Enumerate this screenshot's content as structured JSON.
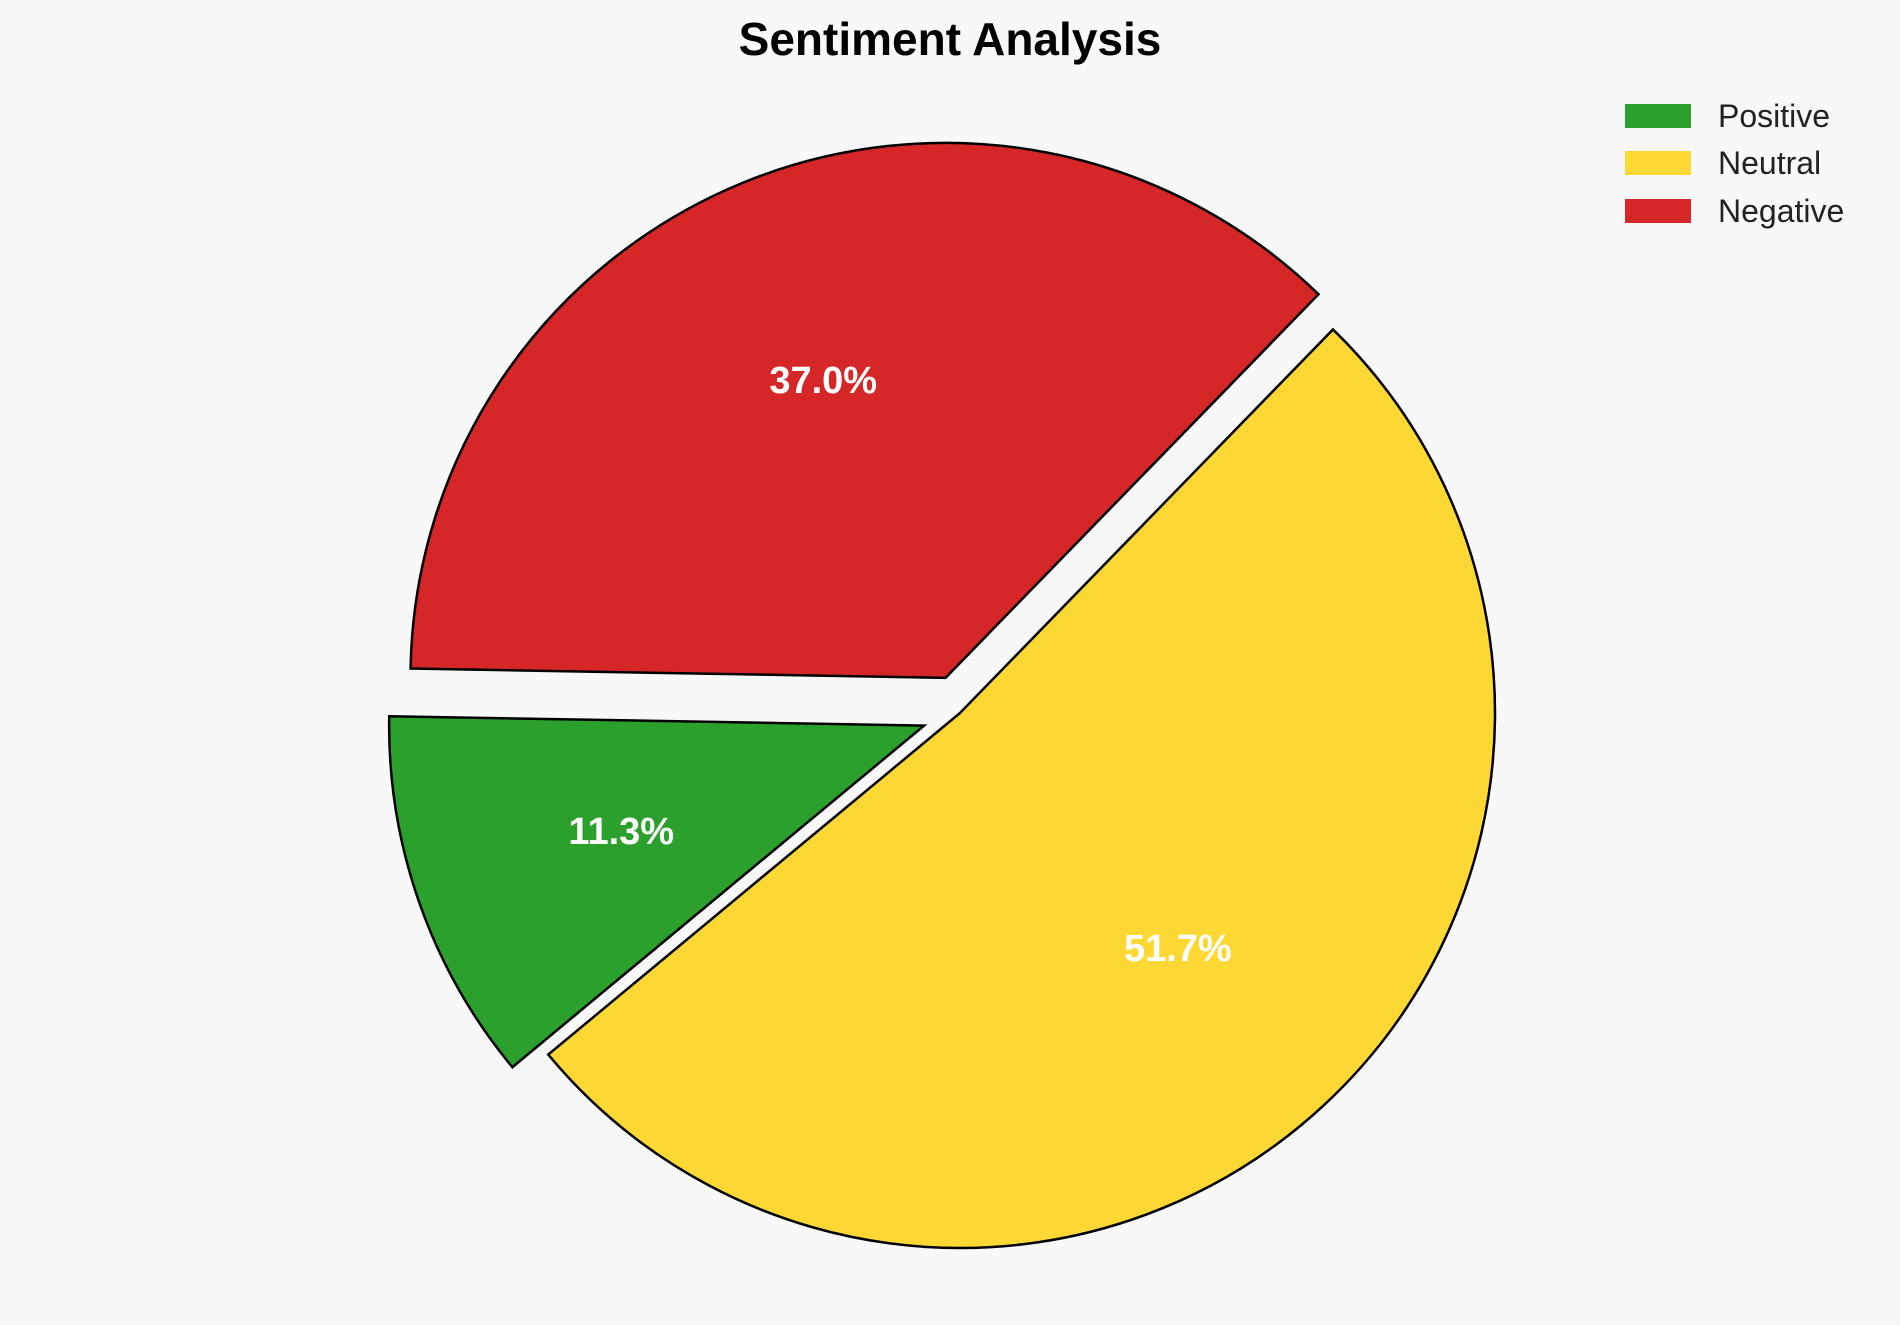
{
  "chart_data": {
    "type": "pie",
    "title": "Sentiment Analysis",
    "legend_position": "top-right",
    "start_angle_deg": 179,
    "direction": "counterclockwise",
    "slices": [
      {
        "label": "Positive",
        "value": 11.3,
        "display": "11.3%",
        "color": "#2ca02c",
        "exploded": true
      },
      {
        "label": "Neutral",
        "value": 51.7,
        "display": "51.7%",
        "color": "#fdd835",
        "exploded": false
      },
      {
        "label": "Negative",
        "value": 37.0,
        "display": "37.0%",
        "color": "#d62728",
        "exploded": true
      }
    ]
  },
  "legend": {
    "items": [
      {
        "label": "Positive",
        "color": "#2ca02c"
      },
      {
        "label": "Neutral",
        "color": "#fdd835"
      },
      {
        "label": "Negative",
        "color": "#d62728"
      }
    ]
  }
}
